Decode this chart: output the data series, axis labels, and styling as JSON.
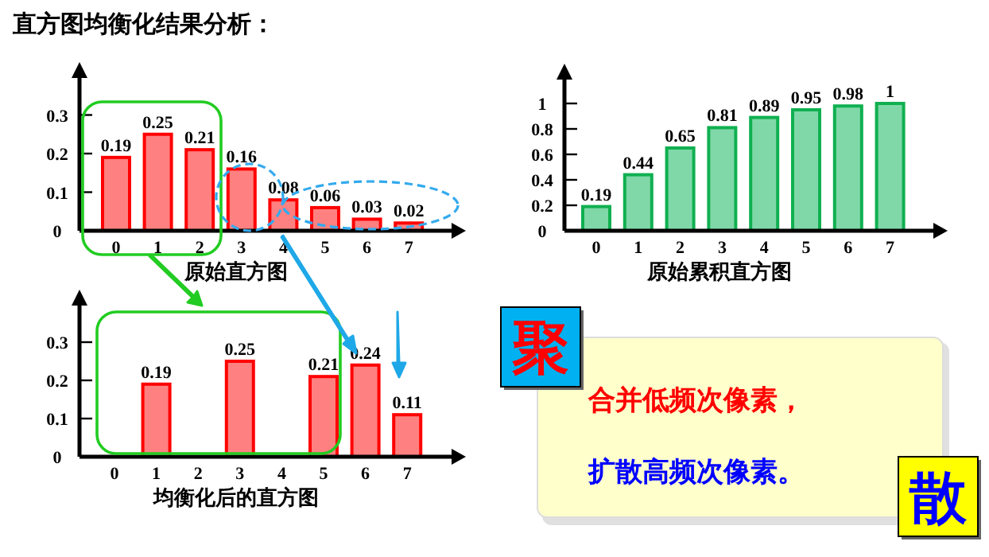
{
  "chart_data": [
    {
      "type": "bar",
      "title": "直方图均衡化结果分析：",
      "xlabel": "原始直方图",
      "categories": [
        "0",
        "1",
        "2",
        "3",
        "4",
        "5",
        "6",
        "7"
      ],
      "values": [
        0.19,
        0.25,
        0.21,
        0.16,
        0.08,
        0.06,
        0.03,
        0.02
      ],
      "color": "#ff8080",
      "ylim": [
        0,
        0.4
      ],
      "yticks": [
        0,
        0.1,
        0.2,
        0.3
      ],
      "data_labels": true
    },
    {
      "type": "bar",
      "xlabel": "原始累积直方图",
      "categories": [
        "0",
        "1",
        "2",
        "3",
        "4",
        "5",
        "6",
        "7"
      ],
      "values": [
        0.19,
        0.44,
        0.65,
        0.81,
        0.89,
        0.95,
        0.98,
        1
      ],
      "color": "#80d8a8",
      "ylim": [
        0,
        1.2
      ],
      "yticks": [
        0,
        0.2,
        0.4,
        0.6,
        0.8,
        1
      ],
      "data_labels": true
    },
    {
      "type": "bar",
      "xlabel": "均衡化后的直方图",
      "categories": [
        "0",
        "1",
        "2",
        "3",
        "4",
        "5",
        "6",
        "7"
      ],
      "values": [
        null,
        0.19,
        null,
        0.25,
        null,
        0.21,
        0.24,
        0.11
      ],
      "color": "#ff8080",
      "ylim": [
        0,
        0.4
      ],
      "yticks": [
        0,
        0.1,
        0.2,
        0.3
      ],
      "data_labels": true
    },
    {
      "type": "other",
      "annotations": [
        "聚",
        "合并低频次像素，",
        "扩散高频次像素。",
        "散"
      ]
    }
  ]
}
